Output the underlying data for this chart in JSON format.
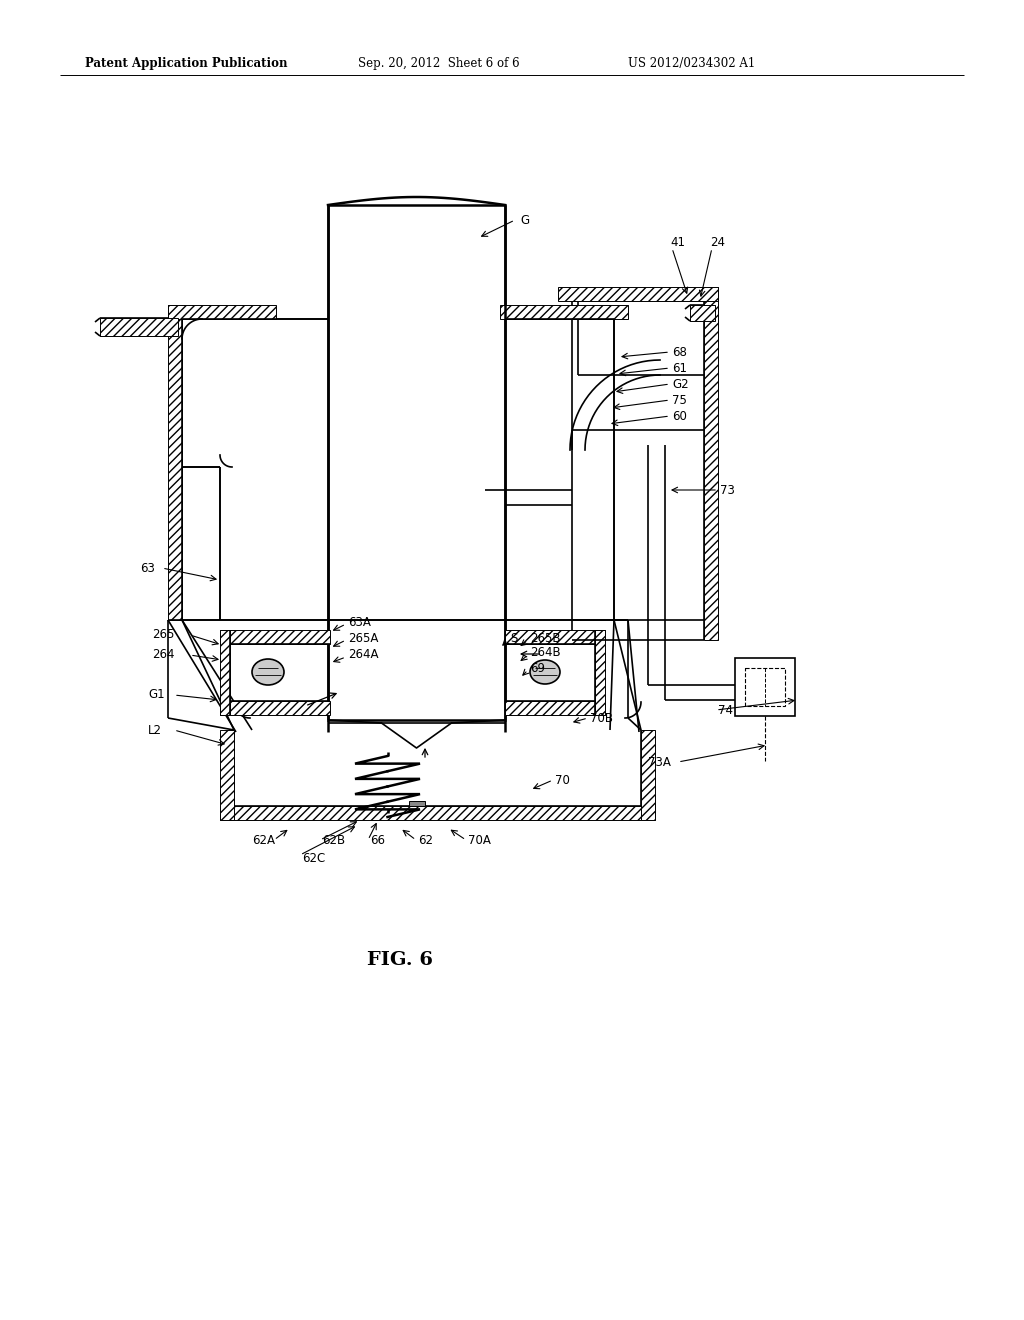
{
  "background_color": "#ffffff",
  "header_left": "Patent Application Publication",
  "header_mid": "Sep. 20, 2012  Sheet 6 of 6",
  "header_right": "US 2012/0234302 A1",
  "figure_label": "FIG. 6"
}
